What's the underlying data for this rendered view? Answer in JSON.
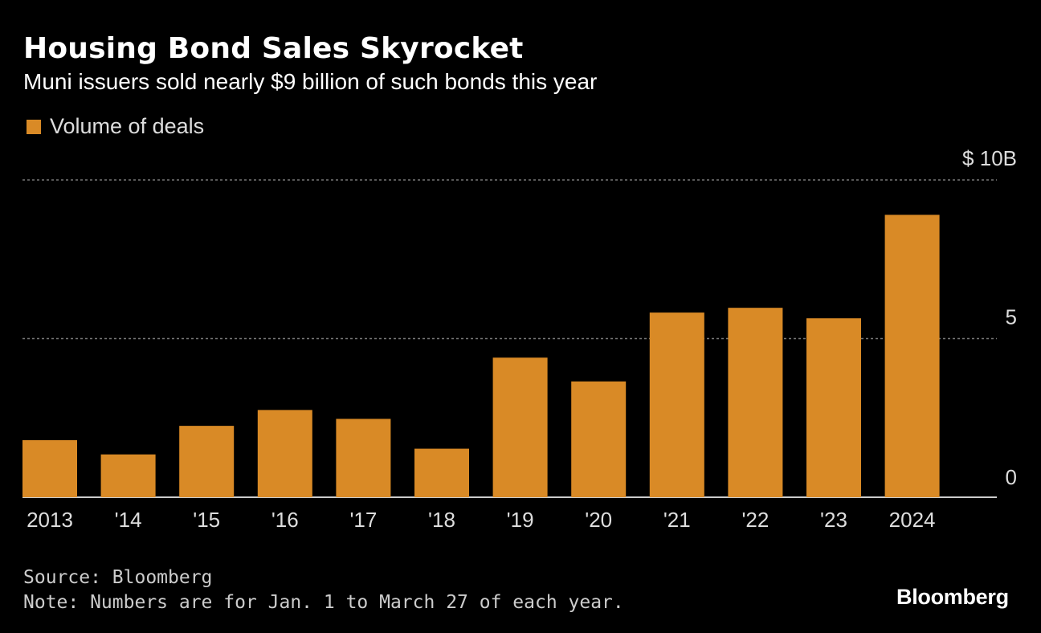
{
  "header": {
    "title": "Housing Bond Sales Skyrocket",
    "subtitle": "Muni issuers sold nearly $9 billion of such bonds this year"
  },
  "legend": {
    "label": "Volume of deals"
  },
  "footer": {
    "source": "Source: Bloomberg",
    "note": "Note: Numbers are for Jan. 1 to March 27 of each year.",
    "brand": "Bloomberg"
  },
  "colors": {
    "bar": "#d98a26",
    "background": "#000000",
    "grid": "#777777",
    "axis": "#cccccc"
  },
  "chart_data": {
    "type": "bar",
    "title": "Housing Bond Sales Skyrocket",
    "subtitle": "Muni issuers sold nearly $9 billion of such bonds this year",
    "categories": [
      "2013",
      "'14",
      "'15",
      "'16",
      "'17",
      "'18",
      "'19",
      "'20",
      "'21",
      "'22",
      "'23",
      "2024"
    ],
    "series": [
      {
        "name": "Volume of deals",
        "values": [
          1.8,
          1.35,
          2.25,
          2.75,
          2.47,
          1.53,
          4.4,
          3.65,
          5.82,
          5.97,
          5.64,
          8.9
        ]
      }
    ],
    "ylim": [
      0,
      10
    ],
    "y_ticks": [
      {
        "value": 10,
        "label": "$ 10B"
      },
      {
        "value": 5,
        "label": "5"
      },
      {
        "value": 0,
        "label": "0"
      }
    ],
    "unit": "billion USD",
    "grid": true,
    "legend_position": "top-left",
    "y_axis_position": "right"
  }
}
